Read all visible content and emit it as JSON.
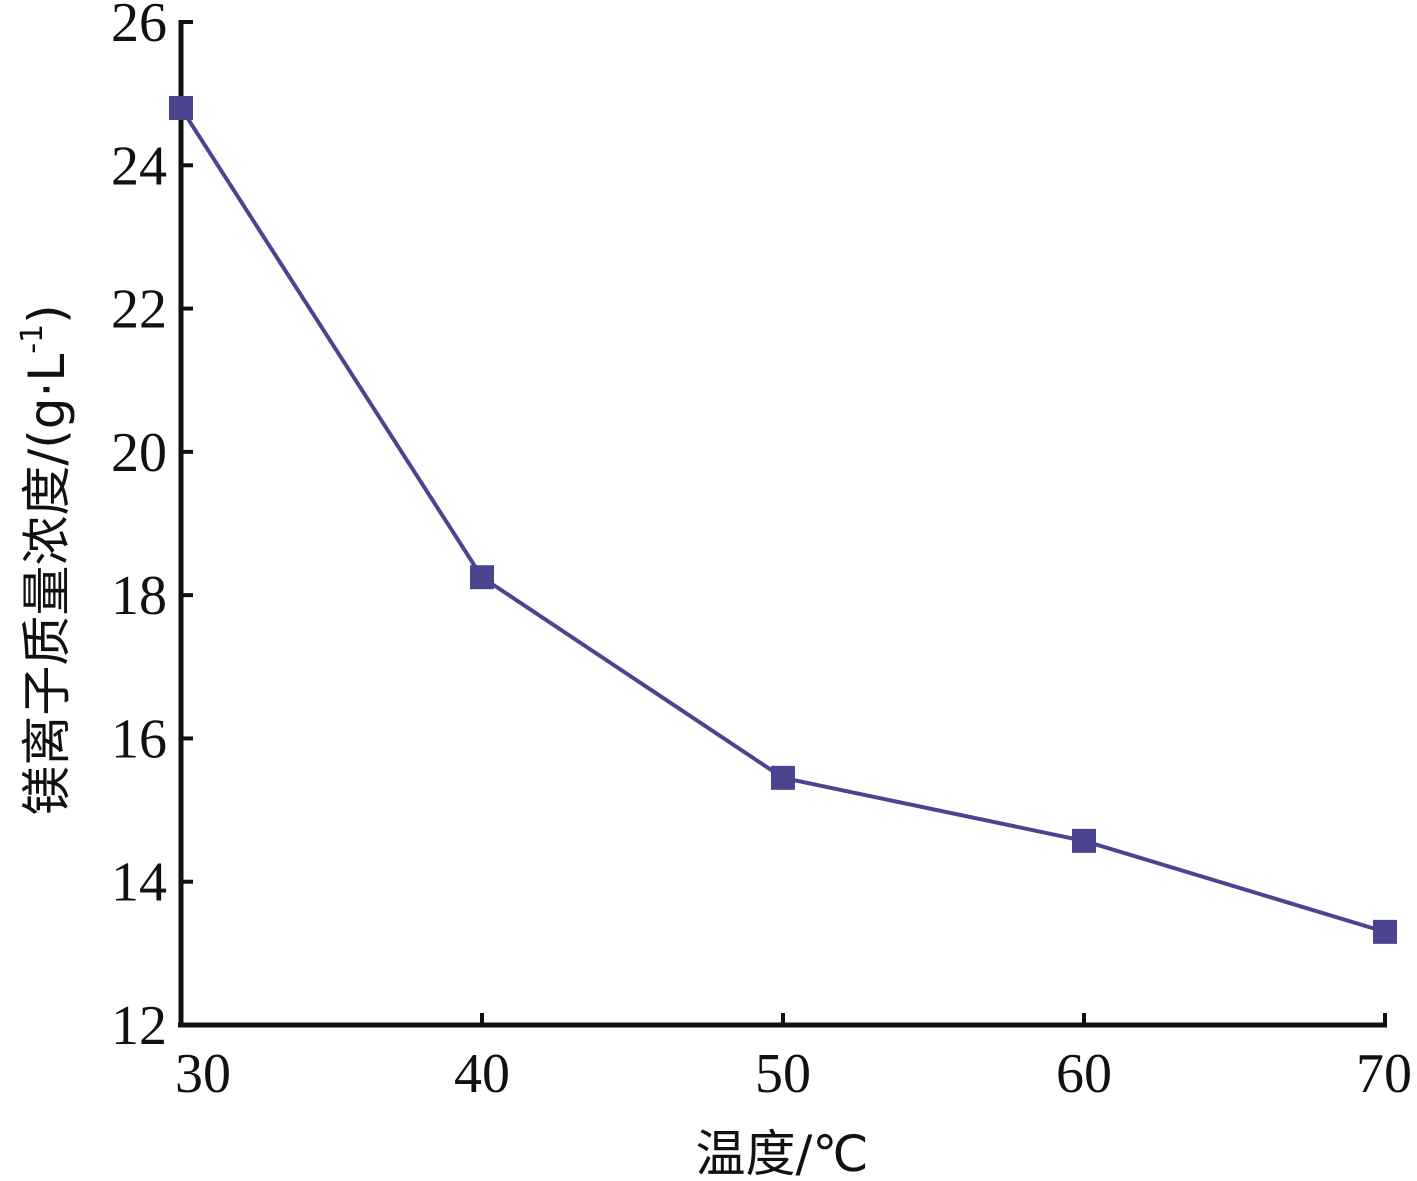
{
  "chart_data": {
    "type": "line",
    "title": "",
    "xlabel": "温度/℃",
    "ylabel_main": "镁离子质量浓度/(g·L",
    "ylabel_sup": "-1",
    "ylabel_close": ")",
    "xlim": [
      30,
      70
    ],
    "ylim": [
      12,
      26
    ],
    "x_ticks": [
      30,
      40,
      50,
      60,
      70
    ],
    "y_ticks": [
      12,
      14,
      16,
      18,
      20,
      22,
      24,
      26
    ],
    "grid": false,
    "series": [
      {
        "x": [
          30,
          40,
          50,
          60,
          70
        ],
        "values": [
          24.8,
          18.25,
          15.45,
          14.57,
          13.3
        ],
        "color": "#4b4590",
        "marker": "square"
      }
    ]
  }
}
